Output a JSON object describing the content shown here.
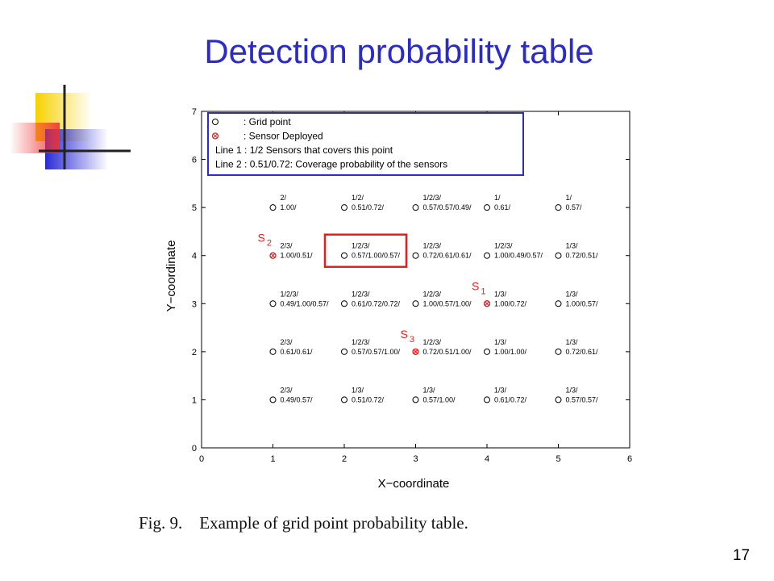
{
  "slide": {
    "title": "Detection probability table",
    "caption": "Fig. 9.    Example of grid point probability table.",
    "page_number": "17"
  },
  "colors": {
    "title": "#2b2bc8",
    "legend_border": "#2a2ad6",
    "sensor": "#e02020",
    "highlight_box": "#e02020",
    "deco_yellow": "#f7d100",
    "deco_blue": "#2a2ad6",
    "deco_red": "#f03030"
  },
  "chart_data": {
    "type": "scatter",
    "xlabel": "X−coordinate",
    "ylabel": "Y−coordinate",
    "xlim": [
      0,
      6
    ],
    "ylim": [
      0,
      7
    ],
    "xticks": [
      "0",
      "1",
      "2",
      "3",
      "4",
      "5",
      "6"
    ],
    "yticks": [
      "0",
      "1",
      "2",
      "3",
      "4",
      "5",
      "6",
      "7"
    ],
    "legend": {
      "placement": "top",
      "entries": [
        {
          "marker": "grid",
          "text": ": Grid point"
        },
        {
          "marker": "sensor",
          "text": ": Sensor Deployed"
        },
        {
          "marker": "none",
          "text": "Line 1 : 1/2 Sensors that covers this point"
        },
        {
          "marker": "none",
          "text": "Line 2 : 0.51/0.72: Coverage probability of the sensors"
        }
      ]
    },
    "points": [
      {
        "x": 1,
        "y": 5,
        "line1": "2/",
        "line2": "1.00/",
        "sensor": false
      },
      {
        "x": 2,
        "y": 5,
        "line1": "1/2/",
        "line2": "0.51/0.72/",
        "sensor": false
      },
      {
        "x": 3,
        "y": 5,
        "line1": "1/2/3/",
        "line2": "0.57/0.57/0.49/",
        "sensor": false
      },
      {
        "x": 4,
        "y": 5,
        "line1": "1/",
        "line2": "0.61/",
        "sensor": false
      },
      {
        "x": 5,
        "y": 5,
        "line1": "1/",
        "line2": "0.57/",
        "sensor": false
      },
      {
        "x": 1,
        "y": 4,
        "line1": "2/3/",
        "line2": "1.00/0.51/",
        "sensor": true
      },
      {
        "x": 2,
        "y": 4,
        "line1": "1/2/3/",
        "line2": "0.57/1.00/0.57/",
        "sensor": false
      },
      {
        "x": 3,
        "y": 4,
        "line1": "1/2/3/",
        "line2": "0.72/0.61/0.61/",
        "sensor": false
      },
      {
        "x": 4,
        "y": 4,
        "line1": "1/2/3/",
        "line2": "1.00/0.49/0.57/",
        "sensor": false
      },
      {
        "x": 5,
        "y": 4,
        "line1": "1/3/",
        "line2": "0.72/0.51/",
        "sensor": false
      },
      {
        "x": 1,
        "y": 3,
        "line1": "1/2/3/",
        "line2": "0.49/1.00/0.57/",
        "sensor": false
      },
      {
        "x": 2,
        "y": 3,
        "line1": "1/2/3/",
        "line2": "0.61/0.72/0.72/",
        "sensor": false
      },
      {
        "x": 3,
        "y": 3,
        "line1": "1/2/3/",
        "line2": "1.00/0.57/1.00/",
        "sensor": false
      },
      {
        "x": 4,
        "y": 3,
        "line1": "1/3/",
        "line2": "1.00/0.72/",
        "sensor": true
      },
      {
        "x": 5,
        "y": 3,
        "line1": "1/3/",
        "line2": "1.00/0.57/",
        "sensor": false
      },
      {
        "x": 1,
        "y": 2,
        "line1": "2/3/",
        "line2": "0.61/0.61/",
        "sensor": false
      },
      {
        "x": 2,
        "y": 2,
        "line1": "1/2/3/",
        "line2": "0.57/0.57/1.00/",
        "sensor": false
      },
      {
        "x": 3,
        "y": 2,
        "line1": "1/2/3/",
        "line2": "0.72/0.51/1.00/",
        "sensor": true
      },
      {
        "x": 4,
        "y": 2,
        "line1": "1/3/",
        "line2": "1.00/1.00/",
        "sensor": false
      },
      {
        "x": 5,
        "y": 2,
        "line1": "1/3/",
        "line2": "0.72/0.61/",
        "sensor": false
      },
      {
        "x": 1,
        "y": 1,
        "line1": "2/3/",
        "line2": "0.49/0.57/",
        "sensor": false
      },
      {
        "x": 2,
        "y": 1,
        "line1": "1/3/",
        "line2": "0.51/0.72/",
        "sensor": false
      },
      {
        "x": 3,
        "y": 1,
        "line1": "1/3/",
        "line2": "0.57/1.00/",
        "sensor": false
      },
      {
        "x": 4,
        "y": 1,
        "line1": "1/3/",
        "line2": "0.61/0.72/",
        "sensor": false
      },
      {
        "x": 5,
        "y": 1,
        "line1": "1/3/",
        "line2": "0.57/0.57/",
        "sensor": false
      }
    ],
    "sensor_labels": [
      {
        "x": 1,
        "y": 4,
        "name": "S",
        "sub": "2"
      },
      {
        "x": 4,
        "y": 3,
        "name": "S",
        "sub": "1"
      },
      {
        "x": 3,
        "y": 2,
        "name": "S",
        "sub": "3"
      }
    ],
    "highlight": {
      "x": 2,
      "y": 4
    }
  }
}
